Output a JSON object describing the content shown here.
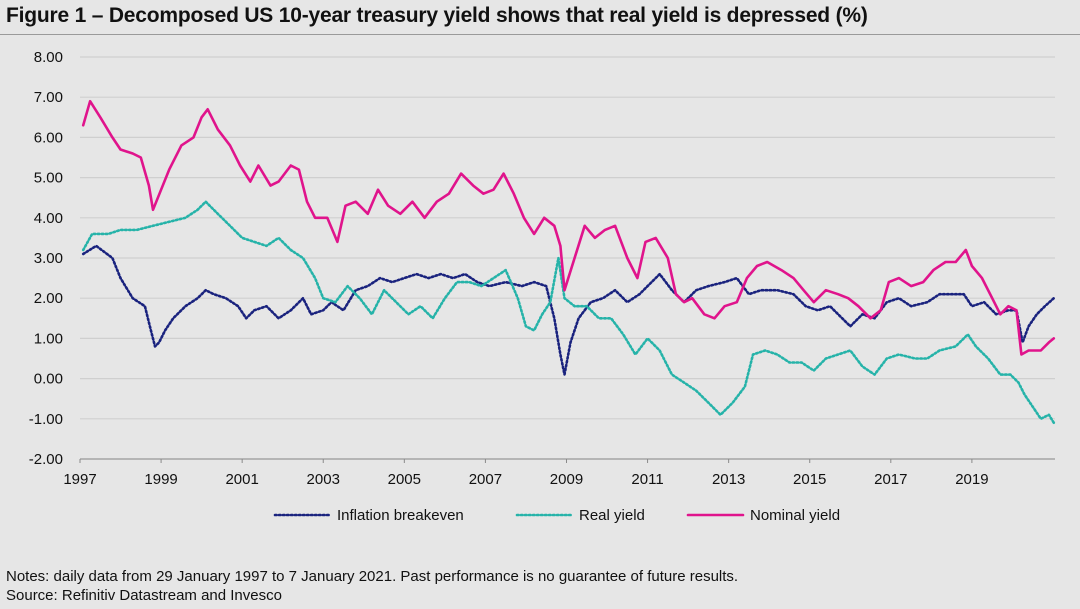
{
  "figure": {
    "title": "Figure 1 – Decomposed US 10-year treasury yield shows that real yield is depressed (%)",
    "notes": "Notes: daily data from 29 January 1997 to 7 January 2021. Past performance is no guarantee of future results.",
    "source": "Source: Refinitiv Datastream and Invesco"
  },
  "colors": {
    "inflation": "#1a237e",
    "real": "#26b3a9",
    "nominal": "#e0148c",
    "grid": "#cfcfcf"
  },
  "chart_data": {
    "type": "line",
    "title": "Figure 1 – Decomposed US 10-year treasury yield shows that real yield is depressed (%)",
    "xlabel": "",
    "ylabel": "",
    "xlim": [
      1997.0,
      2021.05
    ],
    "ylim": [
      -2.0,
      8.0
    ],
    "grid": true,
    "legend_position": "bottom",
    "y_ticks": [
      "8.00",
      "7.00",
      "6.00",
      "5.00",
      "4.00",
      "3.00",
      "2.00",
      "1.00",
      "0.00",
      "-1.00",
      "-2.00"
    ],
    "y_tick_values": [
      8,
      7,
      6,
      5,
      4,
      3,
      2,
      1,
      0,
      -1,
      -2
    ],
    "x_ticks": [
      "1997",
      "1999",
      "2001",
      "2003",
      "2005",
      "2007",
      "2009",
      "2011",
      "2013",
      "2015",
      "2017",
      "2019"
    ],
    "x_tick_values": [
      1997,
      1999,
      2001,
      2003,
      2005,
      2007,
      2009,
      2011,
      2013,
      2015,
      2017,
      2019
    ],
    "series": [
      {
        "name": "Inflation breakeven",
        "style": "dotted",
        "points": [
          [
            1997.08,
            3.1
          ],
          [
            1997.4,
            3.3
          ],
          [
            1997.8,
            3.0
          ],
          [
            1998.0,
            2.5
          ],
          [
            1998.3,
            2.0
          ],
          [
            1998.6,
            1.8
          ],
          [
            1998.75,
            1.2
          ],
          [
            1998.85,
            0.8
          ],
          [
            1998.95,
            0.9
          ],
          [
            1999.1,
            1.2
          ],
          [
            1999.3,
            1.5
          ],
          [
            1999.6,
            1.8
          ],
          [
            1999.9,
            2.0
          ],
          [
            2000.1,
            2.2
          ],
          [
            2000.3,
            2.1
          ],
          [
            2000.6,
            2.0
          ],
          [
            2000.9,
            1.8
          ],
          [
            2001.1,
            1.5
          ],
          [
            2001.3,
            1.7
          ],
          [
            2001.6,
            1.8
          ],
          [
            2001.9,
            1.5
          ],
          [
            2002.2,
            1.7
          ],
          [
            2002.5,
            2.0
          ],
          [
            2002.7,
            1.6
          ],
          [
            2003.0,
            1.7
          ],
          [
            2003.2,
            1.9
          ],
          [
            2003.5,
            1.7
          ],
          [
            2003.8,
            2.2
          ],
          [
            2004.1,
            2.3
          ],
          [
            2004.4,
            2.5
          ],
          [
            2004.7,
            2.4
          ],
          [
            2005.0,
            2.5
          ],
          [
            2005.3,
            2.6
          ],
          [
            2005.6,
            2.5
          ],
          [
            2005.9,
            2.6
          ],
          [
            2006.2,
            2.5
          ],
          [
            2006.5,
            2.6
          ],
          [
            2006.8,
            2.4
          ],
          [
            2007.1,
            2.3
          ],
          [
            2007.5,
            2.4
          ],
          [
            2007.9,
            2.3
          ],
          [
            2008.2,
            2.4
          ],
          [
            2008.5,
            2.3
          ],
          [
            2008.7,
            1.5
          ],
          [
            2008.85,
            0.6
          ],
          [
            2008.95,
            0.1
          ],
          [
            2009.1,
            0.9
          ],
          [
            2009.3,
            1.5
          ],
          [
            2009.6,
            1.9
          ],
          [
            2009.9,
            2.0
          ],
          [
            2010.2,
            2.2
          ],
          [
            2010.5,
            1.9
          ],
          [
            2010.8,
            2.1
          ],
          [
            2011.1,
            2.4
          ],
          [
            2011.3,
            2.6
          ],
          [
            2011.6,
            2.2
          ],
          [
            2011.9,
            1.9
          ],
          [
            2012.2,
            2.2
          ],
          [
            2012.5,
            2.3
          ],
          [
            2012.9,
            2.4
          ],
          [
            2013.2,
            2.5
          ],
          [
            2013.5,
            2.1
          ],
          [
            2013.8,
            2.2
          ],
          [
            2014.2,
            2.2
          ],
          [
            2014.6,
            2.1
          ],
          [
            2014.9,
            1.8
          ],
          [
            2015.2,
            1.7
          ],
          [
            2015.5,
            1.8
          ],
          [
            2015.8,
            1.5
          ],
          [
            2016.0,
            1.3
          ],
          [
            2016.3,
            1.6
          ],
          [
            2016.6,
            1.5
          ],
          [
            2016.9,
            1.9
          ],
          [
            2017.2,
            2.0
          ],
          [
            2017.5,
            1.8
          ],
          [
            2017.9,
            1.9
          ],
          [
            2018.2,
            2.1
          ],
          [
            2018.5,
            2.1
          ],
          [
            2018.8,
            2.1
          ],
          [
            2019.0,
            1.8
          ],
          [
            2019.3,
            1.9
          ],
          [
            2019.6,
            1.6
          ],
          [
            2019.9,
            1.7
          ],
          [
            2020.1,
            1.7
          ],
          [
            2020.25,
            0.9
          ],
          [
            2020.4,
            1.3
          ],
          [
            2020.6,
            1.6
          ],
          [
            2020.8,
            1.8
          ],
          [
            2021.02,
            2.0
          ]
        ]
      },
      {
        "name": "Real yield",
        "style": "dotted",
        "points": [
          [
            1997.08,
            3.2
          ],
          [
            1997.3,
            3.6
          ],
          [
            1997.7,
            3.6
          ],
          [
            1998.0,
            3.7
          ],
          [
            1998.4,
            3.7
          ],
          [
            1998.8,
            3.8
          ],
          [
            1999.2,
            3.9
          ],
          [
            1999.6,
            4.0
          ],
          [
            1999.9,
            4.2
          ],
          [
            2000.1,
            4.4
          ],
          [
            2000.4,
            4.1
          ],
          [
            2000.7,
            3.8
          ],
          [
            2001.0,
            3.5
          ],
          [
            2001.3,
            3.4
          ],
          [
            2001.6,
            3.3
          ],
          [
            2001.9,
            3.5
          ],
          [
            2002.2,
            3.2
          ],
          [
            2002.5,
            3.0
          ],
          [
            2002.8,
            2.5
          ],
          [
            2003.0,
            2.0
          ],
          [
            2003.3,
            1.9
          ],
          [
            2003.6,
            2.3
          ],
          [
            2003.9,
            2.0
          ],
          [
            2004.2,
            1.6
          ],
          [
            2004.5,
            2.2
          ],
          [
            2004.8,
            1.9
          ],
          [
            2005.1,
            1.6
          ],
          [
            2005.4,
            1.8
          ],
          [
            2005.7,
            1.5
          ],
          [
            2006.0,
            2.0
          ],
          [
            2006.3,
            2.4
          ],
          [
            2006.6,
            2.4
          ],
          [
            2006.9,
            2.3
          ],
          [
            2007.2,
            2.5
          ],
          [
            2007.5,
            2.7
          ],
          [
            2007.8,
            2.0
          ],
          [
            2008.0,
            1.3
          ],
          [
            2008.2,
            1.2
          ],
          [
            2008.4,
            1.6
          ],
          [
            2008.6,
            1.9
          ],
          [
            2008.8,
            3.0
          ],
          [
            2008.95,
            2.0
          ],
          [
            2009.2,
            1.8
          ],
          [
            2009.5,
            1.8
          ],
          [
            2009.8,
            1.5
          ],
          [
            2010.1,
            1.5
          ],
          [
            2010.4,
            1.1
          ],
          [
            2010.7,
            0.6
          ],
          [
            2011.0,
            1.0
          ],
          [
            2011.3,
            0.7
          ],
          [
            2011.6,
            0.1
          ],
          [
            2011.9,
            -0.1
          ],
          [
            2012.2,
            -0.3
          ],
          [
            2012.5,
            -0.6
          ],
          [
            2012.8,
            -0.9
          ],
          [
            2013.1,
            -0.6
          ],
          [
            2013.4,
            -0.2
          ],
          [
            2013.6,
            0.6
          ],
          [
            2013.9,
            0.7
          ],
          [
            2014.2,
            0.6
          ],
          [
            2014.5,
            0.4
          ],
          [
            2014.8,
            0.4
          ],
          [
            2015.1,
            0.2
          ],
          [
            2015.4,
            0.5
          ],
          [
            2015.7,
            0.6
          ],
          [
            2016.0,
            0.7
          ],
          [
            2016.3,
            0.3
          ],
          [
            2016.6,
            0.1
          ],
          [
            2016.9,
            0.5
          ],
          [
            2017.2,
            0.6
          ],
          [
            2017.6,
            0.5
          ],
          [
            2017.9,
            0.5
          ],
          [
            2018.2,
            0.7
          ],
          [
            2018.6,
            0.8
          ],
          [
            2018.9,
            1.1
          ],
          [
            2019.1,
            0.8
          ],
          [
            2019.4,
            0.5
          ],
          [
            2019.7,
            0.1
          ],
          [
            2019.95,
            0.1
          ],
          [
            2020.15,
            -0.1
          ],
          [
            2020.3,
            -0.4
          ],
          [
            2020.5,
            -0.7
          ],
          [
            2020.7,
            -1.0
          ],
          [
            2020.9,
            -0.9
          ],
          [
            2021.02,
            -1.1
          ]
        ]
      },
      {
        "name": "Nominal yield",
        "style": "solid",
        "points": [
          [
            1997.08,
            6.3
          ],
          [
            1997.25,
            6.9
          ],
          [
            1997.5,
            6.5
          ],
          [
            1997.8,
            6.0
          ],
          [
            1998.0,
            5.7
          ],
          [
            1998.3,
            5.6
          ],
          [
            1998.5,
            5.5
          ],
          [
            1998.7,
            4.8
          ],
          [
            1998.8,
            4.2
          ],
          [
            1999.0,
            4.7
          ],
          [
            1999.2,
            5.2
          ],
          [
            1999.5,
            5.8
          ],
          [
            1999.8,
            6.0
          ],
          [
            2000.0,
            6.5
          ],
          [
            2000.15,
            6.7
          ],
          [
            2000.4,
            6.2
          ],
          [
            2000.7,
            5.8
          ],
          [
            2000.95,
            5.3
          ],
          [
            2001.2,
            4.9
          ],
          [
            2001.4,
            5.3
          ],
          [
            2001.7,
            4.8
          ],
          [
            2001.9,
            4.9
          ],
          [
            2002.2,
            5.3
          ],
          [
            2002.4,
            5.2
          ],
          [
            2002.6,
            4.4
          ],
          [
            2002.8,
            4.0
          ],
          [
            2003.1,
            4.0
          ],
          [
            2003.35,
            3.4
          ],
          [
            2003.55,
            4.3
          ],
          [
            2003.8,
            4.4
          ],
          [
            2004.1,
            4.1
          ],
          [
            2004.35,
            4.7
          ],
          [
            2004.6,
            4.3
          ],
          [
            2004.9,
            4.1
          ],
          [
            2005.2,
            4.4
          ],
          [
            2005.5,
            4.0
          ],
          [
            2005.8,
            4.4
          ],
          [
            2006.1,
            4.6
          ],
          [
            2006.4,
            5.1
          ],
          [
            2006.7,
            4.8
          ],
          [
            2006.95,
            4.6
          ],
          [
            2007.2,
            4.7
          ],
          [
            2007.45,
            5.1
          ],
          [
            2007.7,
            4.6
          ],
          [
            2007.95,
            4.0
          ],
          [
            2008.2,
            3.6
          ],
          [
            2008.45,
            4.0
          ],
          [
            2008.7,
            3.8
          ],
          [
            2008.85,
            3.3
          ],
          [
            2008.95,
            2.2
          ],
          [
            2009.2,
            3.0
          ],
          [
            2009.45,
            3.8
          ],
          [
            2009.7,
            3.5
          ],
          [
            2009.95,
            3.7
          ],
          [
            2010.2,
            3.8
          ],
          [
            2010.5,
            3.0
          ],
          [
            2010.75,
            2.5
          ],
          [
            2010.95,
            3.4
          ],
          [
            2011.2,
            3.5
          ],
          [
            2011.5,
            3.0
          ],
          [
            2011.7,
            2.1
          ],
          [
            2011.9,
            1.9
          ],
          [
            2012.1,
            2.0
          ],
          [
            2012.4,
            1.6
          ],
          [
            2012.65,
            1.5
          ],
          [
            2012.9,
            1.8
          ],
          [
            2013.2,
            1.9
          ],
          [
            2013.45,
            2.5
          ],
          [
            2013.7,
            2.8
          ],
          [
            2013.95,
            2.9
          ],
          [
            2014.3,
            2.7
          ],
          [
            2014.6,
            2.5
          ],
          [
            2014.85,
            2.2
          ],
          [
            2015.1,
            1.9
          ],
          [
            2015.4,
            2.2
          ],
          [
            2015.7,
            2.1
          ],
          [
            2015.95,
            2.0
          ],
          [
            2016.2,
            1.8
          ],
          [
            2016.5,
            1.5
          ],
          [
            2016.75,
            1.7
          ],
          [
            2016.95,
            2.4
          ],
          [
            2017.2,
            2.5
          ],
          [
            2017.5,
            2.3
          ],
          [
            2017.8,
            2.4
          ],
          [
            2018.05,
            2.7
          ],
          [
            2018.35,
            2.9
          ],
          [
            2018.6,
            2.9
          ],
          [
            2018.85,
            3.2
          ],
          [
            2019.0,
            2.8
          ],
          [
            2019.25,
            2.5
          ],
          [
            2019.5,
            2.0
          ],
          [
            2019.7,
            1.6
          ],
          [
            2019.9,
            1.8
          ],
          [
            2020.1,
            1.7
          ],
          [
            2020.22,
            0.6
          ],
          [
            2020.4,
            0.7
          ],
          [
            2020.7,
            0.7
          ],
          [
            2020.9,
            0.9
          ],
          [
            2021.02,
            1.0
          ]
        ]
      }
    ]
  }
}
